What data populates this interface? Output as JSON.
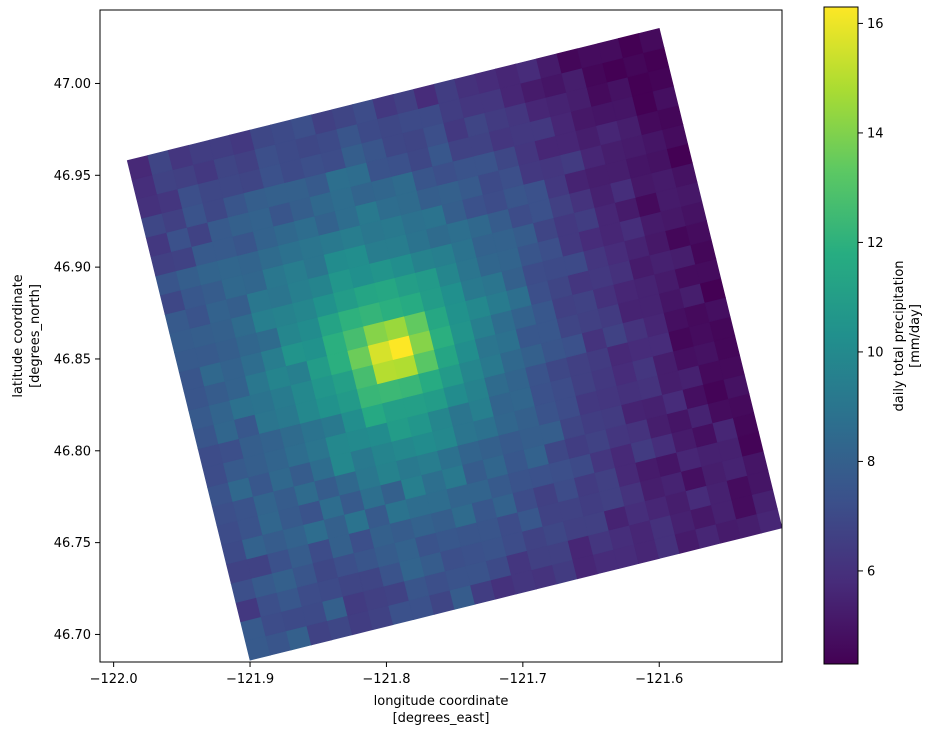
{
  "chart_data": {
    "type": "heatmap",
    "title": "",
    "xlabel": "longitude coordinate",
    "xlabel_units": "[degrees_east]",
    "ylabel": "latitude coordinate",
    "ylabel_units": "[degrees_north]",
    "colorbar_label": "daily total precipitation",
    "colorbar_units": "[mm/day]",
    "colormap": "viridis",
    "xlim": [
      -122.01,
      -121.51
    ],
    "ylim": [
      46.685,
      47.04
    ],
    "x_ticks": [
      -122.0,
      -121.9,
      -121.8,
      -121.7,
      -121.6
    ],
    "x_tick_labels": [
      "−122.0",
      "−121.9",
      "−121.8",
      "−121.7",
      "−121.6"
    ],
    "y_ticks": [
      46.7,
      46.75,
      46.8,
      46.85,
      46.9,
      46.95,
      47.0
    ],
    "y_tick_labels": [
      "46.70",
      "46.75",
      "46.80",
      "46.85",
      "46.90",
      "46.95",
      "47.00"
    ],
    "color_range": [
      4.3,
      16.3
    ],
    "colorbar_ticks": [
      6,
      8,
      10,
      12,
      14,
      16
    ],
    "colorbar_tick_labels": [
      "6",
      "8",
      "10",
      "12",
      "14",
      "16"
    ],
    "domain_corners_lonlat": [
      [
        -121.9,
        46.686
      ],
      [
        -121.51,
        46.758
      ],
      [
        -121.6,
        47.039
      ],
      [
        -121.99,
        46.958
      ]
    ],
    "peak": {
      "lon": -121.763,
      "lat": 46.852,
      "value": 16.3
    },
    "grid_rows": 26,
    "grid_cols": 26,
    "cells": [
      [
        7.7,
        7.5,
        8.0,
        6.7,
        6.9,
        6.5,
        6.7,
        7.3,
        7.3,
        6.8,
        7.8,
        6.5,
        6.0,
        6.2,
        6.1,
        6.4,
        5.6,
        5.8,
        5.8,
        5.6,
        6.0,
        5.2,
        5.6,
        5.2,
        5.3,
        5.6
      ],
      [
        7.7,
        7.1,
        7.0,
        7.0,
        8.0,
        6.4,
        6.6,
        6.7,
        7.5,
        7.2,
        7.4,
        7.4,
        7.0,
        6.2,
        6.6,
        6.6,
        5.6,
        6.2,
        5.9,
        5.6,
        6.0,
        5.4,
        5.1,
        5.4,
        4.7,
        5.4
      ],
      [
        6.3,
        7.2,
        7.6,
        7.1,
        7.0,
        6.8,
        6.8,
        7.4,
        8.2,
        7.8,
        7.2,
        7.3,
        7.4,
        7.1,
        6.7,
        6.9,
        6.6,
        6.6,
        5.5,
        5.9,
        5.6,
        5.3,
        5.8,
        5.4,
        4.7,
        5.0
      ],
      [
        7.2,
        7.7,
        8.0,
        7.5,
        6.9,
        7.2,
        7.5,
        7.8,
        8.1,
        7.4,
        7.6,
        7.5,
        7.5,
        7.1,
        7.6,
        6.7,
        6.7,
        6.5,
        6.6,
        6.1,
        5.3,
        5.5,
        4.8,
        5.3,
        5.5,
        5.0
      ],
      [
        6.7,
        6.7,
        7.3,
        7.8,
        7.1,
        8.0,
        7.2,
        8.0,
        7.8,
        8.1,
        7.9,
        8.5,
        7.6,
        8.1,
        7.1,
        6.6,
        7.1,
        6.4,
        6.6,
        5.7,
        5.2,
        5.0,
        5.6,
        5.4,
        5.4,
        4.4
      ],
      [
        7.0,
        8.1,
        7.8,
        8.1,
        8.6,
        8.0,
        8.9,
        7.7,
        8.9,
        8.6,
        8.6,
        8.2,
        8.2,
        7.7,
        7.4,
        7.3,
        7.2,
        7.0,
        6.2,
        5.7,
        6.4,
        5.9,
        5.2,
        4.8,
        5.6,
        4.5
      ],
      [
        7.1,
        7.4,
        8.3,
        7.7,
        7.4,
        8.6,
        7.7,
        8.7,
        8.0,
        9.5,
        8.7,
        9.2,
        7.8,
        8.3,
        7.6,
        8.1,
        6.9,
        6.5,
        6.7,
        6.2,
        6.1,
        5.3,
        5.0,
        5.5,
        4.7,
        4.6
      ],
      [
        7.2,
        7.4,
        8.2,
        7.8,
        8.5,
        7.8,
        8.4,
        9.1,
        9.6,
        9.2,
        9.4,
        8.8,
        8.2,
        8.0,
        7.7,
        7.9,
        7.9,
        6.8,
        6.5,
        6.4,
        5.5,
        5.4,
        5.8,
        4.8,
        4.4,
        4.9
      ],
      [
        7.4,
        8.4,
        7.6,
        8.4,
        7.8,
        8.6,
        9.9,
        9.2,
        9.7,
        9.9,
        10.1,
        9.9,
        9.0,
        8.8,
        8.3,
        8.0,
        7.4,
        7.1,
        6.3,
        6.2,
        6.0,
        6.1,
        5.3,
        5.4,
        4.6,
        4.6
      ],
      [
        7.1,
        7.7,
        7.9,
        8.2,
        8.6,
        9.0,
        9.9,
        10.0,
        10.1,
        10.9,
        10.6,
        9.8,
        9.0,
        9.5,
        8.2,
        8.3,
        7.3,
        7.1,
        6.6,
        6.3,
        5.8,
        6.2,
        5.3,
        4.8,
        4.9,
        4.5
      ],
      [
        7.1,
        7.2,
        7.9,
        8.1,
        8.5,
        8.9,
        9.2,
        10.2,
        11.6,
        11.1,
        11.1,
        10.9,
        10.1,
        9.6,
        8.5,
        8.2,
        7.4,
        6.9,
        6.6,
        6.4,
        5.7,
        5.8,
        5.8,
        4.5,
        4.7,
        4.5
      ],
      [
        7.5,
        8.3,
        7.6,
        9.0,
        9.2,
        9.9,
        10.4,
        10.8,
        12.3,
        12.4,
        12.3,
        11.7,
        10.8,
        9.8,
        9.2,
        8.4,
        8.0,
        7.5,
        7.3,
        6.1,
        6.7,
        6.1,
        5.6,
        4.8,
        4.6,
        4.8
      ],
      [
        7.7,
        8.2,
        8.8,
        8.9,
        9.3,
        9.9,
        10.6,
        11.1,
        12.7,
        15.0,
        14.9,
        13.2,
        11.4,
        10.2,
        9.0,
        8.8,
        7.6,
        7.6,
        6.8,
        6.6,
        6.4,
        5.5,
        5.5,
        5.0,
        5.3,
        4.3
      ],
      [
        7.5,
        7.8,
        8.1,
        9.1,
        9.7,
        9.5,
        10.9,
        11.9,
        13.6,
        15.6,
        16.3,
        14.1,
        11.9,
        10.5,
        9.5,
        8.6,
        8.1,
        7.6,
        6.6,
        6.7,
        6.0,
        5.6,
        5.5,
        5.2,
        4.7,
        4.7
      ],
      [
        7.5,
        8.4,
        8.1,
        8.6,
        9.4,
        10.5,
        10.4,
        11.9,
        12.7,
        14.1,
        14.5,
        13.4,
        11.5,
        10.4,
        9.9,
        9.3,
        8.7,
        7.2,
        6.8,
        6.2,
        6.3,
        6.0,
        5.2,
        5.4,
        5.3,
        4.5
      ],
      [
        7.7,
        7.7,
        7.9,
        8.3,
        8.5,
        9.8,
        10.1,
        11.3,
        12.0,
        12.2,
        11.9,
        11.7,
        10.9,
        10.3,
        9.2,
        9.0,
        8.0,
        7.1,
        7.0,
        7.0,
        6.2,
        5.8,
        5.5,
        5.1,
        4.5,
        4.7
      ],
      [
        7.8,
        7.9,
        8.0,
        8.5,
        9.5,
        9.6,
        9.8,
        10.4,
        10.9,
        11.4,
        11.5,
        11.0,
        10.8,
        9.8,
        9.0,
        8.3,
        8.2,
        7.5,
        7.2,
        6.3,
        5.8,
        5.6,
        5.9,
        5.2,
        5.1,
        4.9
      ],
      [
        7.7,
        7.4,
        8.1,
        7.9,
        9.1,
        9.0,
        9.5,
        9.7,
        10.6,
        10.3,
        10.5,
        10.2,
        9.6,
        9.5,
        8.9,
        8.1,
        8.1,
        7.8,
        6.8,
        6.3,
        6.5,
        5.6,
        5.2,
        4.6,
        5.2,
        5.1
      ],
      [
        6.9,
        7.6,
        7.8,
        8.4,
        8.3,
        9.1,
        9.4,
        9.0,
        10.1,
        10.2,
        9.4,
        9.4,
        8.9,
        8.5,
        8.7,
        8.4,
        7.8,
        7.1,
        7.3,
        6.6,
        6.1,
        5.4,
        5.9,
        5.1,
        5.2,
        4.9
      ],
      [
        7.5,
        7.9,
        8.2,
        8.3,
        8.2,
        8.5,
        8.8,
        9.0,
        9.2,
        9.4,
        9.1,
        9.2,
        8.8,
        8.9,
        7.9,
        7.3,
        7.1,
        7.5,
        7.3,
        6.3,
        5.5,
        5.3,
        5.3,
        5.0,
        4.9,
        4.3
      ],
      [
        6.6,
        6.7,
        7.7,
        7.7,
        7.5,
        8.1,
        8.4,
        8.6,
        8.1,
        8.6,
        9.2,
        8.6,
        8.5,
        7.9,
        8.0,
        7.7,
        7.0,
        7.2,
        6.3,
        6.2,
        6.4,
        5.6,
        5.3,
        5.2,
        5.0,
        4.7
      ],
      [
        6.3,
        7.3,
        6.7,
        7.7,
        8.0,
        8.1,
        7.5,
        7.9,
        8.4,
        8.6,
        8.2,
        8.3,
        8.5,
        7.5,
        7.2,
        7.4,
        7.4,
        6.9,
        6.2,
        5.6,
        5.6,
        5.3,
        5.6,
        5.3,
        4.6,
        4.5
      ],
      [
        6.9,
        6.6,
        7.4,
        6.9,
        7.5,
        7.9,
        8.0,
        8.0,
        7.7,
        8.7,
        8.6,
        7.4,
        7.3,
        6.9,
        7.6,
        6.7,
        6.7,
        6.2,
        6.3,
        6.3,
        5.6,
        5.1,
        5.0,
        5.0,
        4.3,
        4.8
      ],
      [
        6.0,
        6.2,
        7.2,
        6.9,
        6.9,
        6.8,
        7.3,
        7.0,
        7.2,
        7.1,
        7.9,
        7.5,
        6.9,
        6.8,
        7.2,
        6.3,
        6.8,
        6.4,
        6.2,
        5.6,
        5.5,
        5.3,
        4.6,
        4.9,
        4.3,
        4.4
      ],
      [
        5.9,
        6.7,
        6.6,
        6.3,
        6.8,
        6.6,
        7.2,
        7.0,
        6.9,
        7.0,
        7.5,
        7.0,
        6.9,
        7.0,
        7.0,
        6.5,
        6.2,
        6.2,
        5.6,
        5.2,
        5.0,
        5.3,
        4.5,
        4.3,
        4.5,
        4.3
      ],
      [
        5.7,
        6.8,
        6.2,
        6.5,
        6.5,
        6.3,
        6.9,
        7.0,
        7.2,
        6.6,
        6.8,
        7.1,
        6.3,
        6.6,
        5.8,
        6.5,
        6.0,
        5.8,
        5.6,
        5.8,
        5.2,
        4.5,
        4.7,
        4.7,
        4.3,
        4.6
      ]
    ]
  }
}
